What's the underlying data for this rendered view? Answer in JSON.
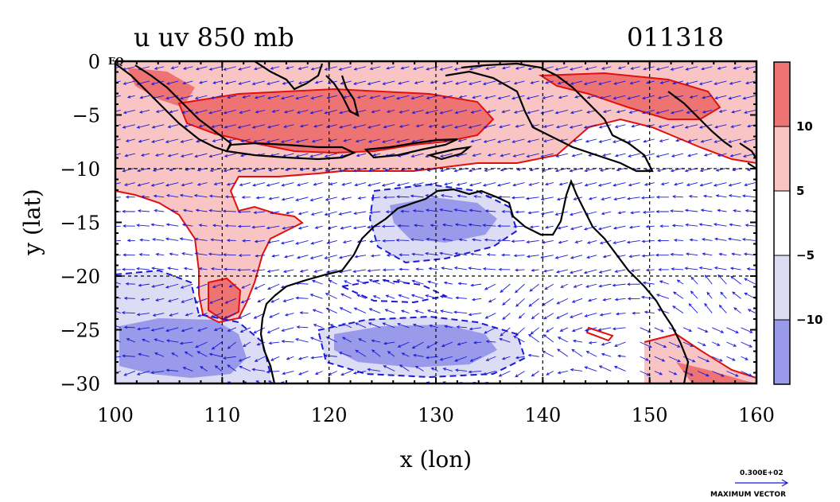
{
  "title_left": "u uv 850 mb",
  "title_right": "011318",
  "x_axis": {
    "label": "x (lon)",
    "ticks": [
      100,
      110,
      120,
      130,
      140,
      150,
      160
    ],
    "range": [
      100,
      160
    ]
  },
  "y_axis": {
    "label": "y (lat)",
    "ticks": [
      "0",
      "−5",
      "−10",
      "−15",
      "−20",
      "−25",
      "−30"
    ],
    "tick_values": [
      0,
      -5,
      -10,
      -15,
      -20,
      -25,
      -30
    ],
    "range": [
      -30,
      0
    ]
  },
  "eq_label": "EQ",
  "colorbar": {
    "labels": [
      "10",
      "5",
      "−5",
      "−10"
    ],
    "bands": [
      {
        "color": "#ee7474"
      },
      {
        "color": "#f8c4c4"
      },
      {
        "color": "#ffffff"
      },
      {
        "color": "#dcdcf4"
      },
      {
        "color": "#9a9aea"
      }
    ]
  },
  "vector_key": {
    "magnitude": "0.300E+02",
    "label": "MAXIMUM VECTOR"
  },
  "colors": {
    "strong_positive": "#ee7474",
    "positive": "#f8c4c4",
    "negative": "#dcdcf4",
    "strong_negative": "#9a9aea",
    "vectors": "#1a1ad8",
    "pos_contour": "#e01010",
    "neg_contour": "#1a1ad8",
    "coast": "#000000"
  }
}
